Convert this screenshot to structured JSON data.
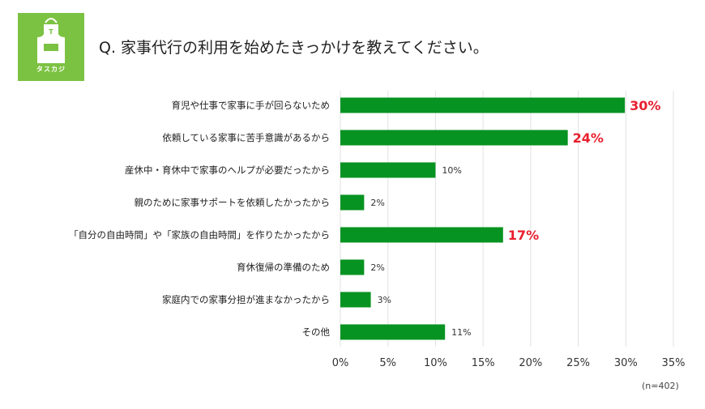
{
  "logo": {
    "text": "タスカジ"
  },
  "title": "Q. 家事代行の利用を始めたきっかけを教えてください。",
  "note": "(n=402)",
  "colors": {
    "bar": "#079321",
    "highlight": "#e8202f",
    "logo_bg": "#7cc242",
    "grid": "#e2e2e2"
  },
  "chart_data": {
    "type": "bar",
    "orientation": "horizontal",
    "title": "Q. 家事代行の利用を始めたきっかけを教えてください。",
    "categories": [
      "育児や仕事で家事に手が回らないため",
      "依頼している家事に苦手意識があるから",
      "産休中・育休中で家事のヘルプが必要だったから",
      "親のために家事サポートを依頼したかったから",
      "「自分の自由時間」や「家族の自由時間」を作りたかったから",
      "育休復帰の準備のため",
      "家庭内での家事分担が進まなかったから",
      "その他"
    ],
    "values": [
      29.9,
      23.9,
      10.0,
      2.5,
      17.1,
      2.5,
      3.2,
      11.0
    ],
    "data_labels": [
      "30%",
      "24%",
      "10%",
      "2%",
      "17%",
      "2%",
      "3%",
      "11%"
    ],
    "highlighted": [
      true,
      true,
      false,
      false,
      true,
      false,
      false,
      false
    ],
    "xlim": [
      0,
      35
    ],
    "xticks": [
      "0%",
      "5%",
      "10%",
      "15%",
      "20%",
      "25%",
      "30%",
      "35%"
    ],
    "grid": true,
    "xlabel": "",
    "ylabel": ""
  }
}
